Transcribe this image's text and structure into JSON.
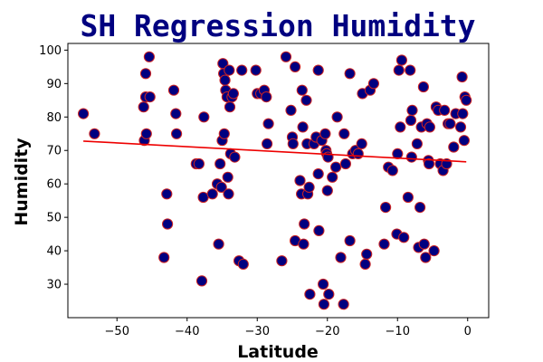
{
  "chart_data": {
    "type": "scatter",
    "title": "SH Regression Humidity",
    "xlabel": "Latitude",
    "ylabel": "Humidity",
    "xlim": [
      -57,
      3
    ],
    "ylim": [
      20,
      102
    ],
    "xticks": [
      -50,
      -40,
      -30,
      -20,
      -10,
      0
    ],
    "yticks": [
      30,
      40,
      50,
      60,
      70,
      80,
      90,
      100
    ],
    "xtick_labels": [
      "−50",
      "−40",
      "−30",
      "−20",
      "−10",
      "0"
    ],
    "ytick_labels": [
      "30",
      "40",
      "50",
      "60",
      "70",
      "80",
      "90",
      "100"
    ],
    "grid": false,
    "marker_fill": "#000080",
    "marker_edge": "#cc2222",
    "line_color": "#ee0000",
    "regression": {
      "x": [
        -54.8,
        -0.2
      ],
      "y": [
        72.8,
        66.6
      ]
    },
    "points": [
      [
        -54.8,
        81
      ],
      [
        -53.2,
        75
      ],
      [
        -46.2,
        83
      ],
      [
        -46.1,
        73
      ],
      [
        -45.9,
        93
      ],
      [
        -45.9,
        86
      ],
      [
        -45.8,
        75
      ],
      [
        -45.4,
        98
      ],
      [
        -45.3,
        86
      ],
      [
        -43.3,
        38
      ],
      [
        -42.9,
        57
      ],
      [
        -42.8,
        48
      ],
      [
        -41.9,
        88
      ],
      [
        -41.6,
        81
      ],
      [
        -41.5,
        75
      ],
      [
        -38.7,
        66
      ],
      [
        -38.3,
        66
      ],
      [
        -37.9,
        31
      ],
      [
        -37.7,
        56
      ],
      [
        -37.6,
        80
      ],
      [
        -36.4,
        57
      ],
      [
        -35.7,
        60
      ],
      [
        -35.5,
        42
      ],
      [
        -35.3,
        66
      ],
      [
        -35.1,
        59
      ],
      [
        -35.0,
        73
      ],
      [
        -34.9,
        96
      ],
      [
        -34.8,
        93
      ],
      [
        -34.7,
        75
      ],
      [
        -34.6,
        91
      ],
      [
        -34.5,
        88
      ],
      [
        -34.3,
        86
      ],
      [
        -34.2,
        62
      ],
      [
        -34.1,
        57
      ],
      [
        -34.0,
        94
      ],
      [
        -33.9,
        83
      ],
      [
        -33.8,
        69
      ],
      [
        -33.6,
        86
      ],
      [
        -33.4,
        87
      ],
      [
        -33.2,
        68
      ],
      [
        -32.6,
        37
      ],
      [
        -32.2,
        94
      ],
      [
        -32.0,
        36
      ],
      [
        -30.2,
        94
      ],
      [
        -30.0,
        87
      ],
      [
        -29.5,
        87
      ],
      [
        -29.0,
        88
      ],
      [
        -28.7,
        86
      ],
      [
        -28.6,
        72
      ],
      [
        -28.4,
        78
      ],
      [
        -26.5,
        37
      ],
      [
        -25.9,
        98
      ],
      [
        -25.2,
        82
      ],
      [
        -25.0,
        74
      ],
      [
        -24.9,
        72
      ],
      [
        -24.6,
        95
      ],
      [
        -24.6,
        43
      ],
      [
        -23.9,
        61
      ],
      [
        -23.7,
        57
      ],
      [
        -23.6,
        88
      ],
      [
        -23.5,
        77
      ],
      [
        -23.4,
        42
      ],
      [
        -23.3,
        48
      ],
      [
        -23.0,
        85
      ],
      [
        -22.9,
        72
      ],
      [
        -22.8,
        57
      ],
      [
        -22.6,
        59
      ],
      [
        -22.5,
        27
      ],
      [
        -21.9,
        72
      ],
      [
        -21.6,
        74
      ],
      [
        -21.3,
        63
      ],
      [
        -21.3,
        94
      ],
      [
        -21.2,
        46
      ],
      [
        -20.8,
        73
      ],
      [
        -20.6,
        30
      ],
      [
        -20.5,
        24
      ],
      [
        -20.3,
        75
      ],
      [
        -20.2,
        70
      ],
      [
        -20.1,
        69
      ],
      [
        -20.0,
        58
      ],
      [
        -19.9,
        68
      ],
      [
        -19.8,
        27
      ],
      [
        -19.3,
        62
      ],
      [
        -18.8,
        65
      ],
      [
        -18.6,
        80
      ],
      [
        -18.1,
        38
      ],
      [
        -17.7,
        24
      ],
      [
        -17.6,
        75
      ],
      [
        -17.4,
        66
      ],
      [
        -16.8,
        93
      ],
      [
        -16.8,
        43
      ],
      [
        -16.4,
        69
      ],
      [
        -16.0,
        70
      ],
      [
        -15.6,
        69
      ],
      [
        -15.1,
        72
      ],
      [
        -15.0,
        87
      ],
      [
        -14.6,
        36
      ],
      [
        -14.4,
        39
      ],
      [
        -13.9,
        88
      ],
      [
        -13.4,
        90
      ],
      [
        -11.9,
        42
      ],
      [
        -11.7,
        53
      ],
      [
        -11.3,
        65
      ],
      [
        -10.7,
        64
      ],
      [
        -10.1,
        45
      ],
      [
        -10.0,
        69
      ],
      [
        -9.8,
        94
      ],
      [
        -9.6,
        77
      ],
      [
        -9.4,
        97
      ],
      [
        -9.1,
        44
      ],
      [
        -8.5,
        56
      ],
      [
        -8.2,
        94
      ],
      [
        -8.1,
        79
      ],
      [
        -8.0,
        68
      ],
      [
        -7.9,
        82
      ],
      [
        -7.2,
        72
      ],
      [
        -7.0,
        41
      ],
      [
        -6.8,
        53
      ],
      [
        -6.6,
        77
      ],
      [
        -6.3,
        89
      ],
      [
        -6.2,
        42
      ],
      [
        -6.0,
        38
      ],
      [
        -5.8,
        78
      ],
      [
        -5.6,
        67
      ],
      [
        -5.5,
        66
      ],
      [
        -5.4,
        77
      ],
      [
        -4.8,
        40
      ],
      [
        -4.5,
        83
      ],
      [
        -4.2,
        82
      ],
      [
        -3.9,
        66
      ],
      [
        -3.5,
        64
      ],
      [
        -3.3,
        82
      ],
      [
        -3.0,
        66
      ],
      [
        -2.8,
        78
      ],
      [
        -2.5,
        78
      ],
      [
        -2.0,
        71
      ],
      [
        -1.7,
        81
      ],
      [
        -1.0,
        77
      ],
      [
        -0.8,
        92
      ],
      [
        -0.7,
        81
      ],
      [
        -0.5,
        73
      ],
      [
        -0.4,
        86
      ],
      [
        -0.2,
        85
      ]
    ]
  }
}
